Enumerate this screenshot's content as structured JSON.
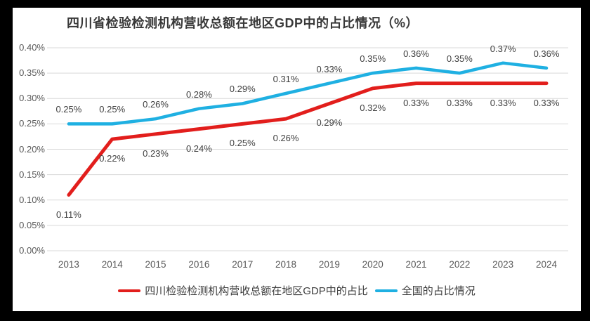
{
  "colors": {
    "frame_bg": "#000000",
    "panel_bg": "#ffffff",
    "gridline": "#d9d9d9",
    "axis_text": "#595959",
    "label_text": "#404040"
  },
  "chart_data": {
    "type": "line",
    "title": "四川省检验检测机构营收总额在地区GDP中的占比情况（%）",
    "categories": [
      "2013",
      "2014",
      "2015",
      "2016",
      "2017",
      "2018",
      "2019",
      "2020",
      "2021",
      "2022",
      "2023",
      "2024"
    ],
    "series": [
      {
        "name": "四川检验检测机构营收总额在地区GDP中的占比",
        "color": "#e21e1c",
        "values": [
          0.11,
          0.22,
          0.23,
          0.24,
          0.25,
          0.26,
          0.29,
          0.32,
          0.33,
          0.33,
          0.33,
          0.33
        ],
        "labels": [
          "0.11%",
          "0.22%",
          "0.23%",
          "0.24%",
          "0.25%",
          "0.26%",
          "0.29%",
          "0.32%",
          "0.33%",
          "0.33%",
          "0.33%",
          "0.33%"
        ],
        "label_position": "below"
      },
      {
        "name": "全国的占比情况",
        "color": "#1fb0e2",
        "values": [
          0.25,
          0.25,
          0.26,
          0.28,
          0.29,
          0.31,
          0.33,
          0.35,
          0.36,
          0.35,
          0.37,
          0.36
        ],
        "labels": [
          "0.25%",
          "0.25%",
          "0.26%",
          "0.28%",
          "0.29%",
          "0.31%",
          "0.33%",
          "0.35%",
          "0.36%",
          "0.35%",
          "0.37%",
          "0.36%"
        ],
        "label_position": "above"
      }
    ],
    "y_axis": {
      "min": 0,
      "max": 0.4,
      "ticks": [
        "0.00%",
        "0.05%",
        "0.10%",
        "0.15%",
        "0.20%",
        "0.25%",
        "0.30%",
        "0.35%",
        "0.40%"
      ]
    },
    "xlabel": "",
    "ylabel": "",
    "grid": true,
    "legend_position": "bottom"
  }
}
